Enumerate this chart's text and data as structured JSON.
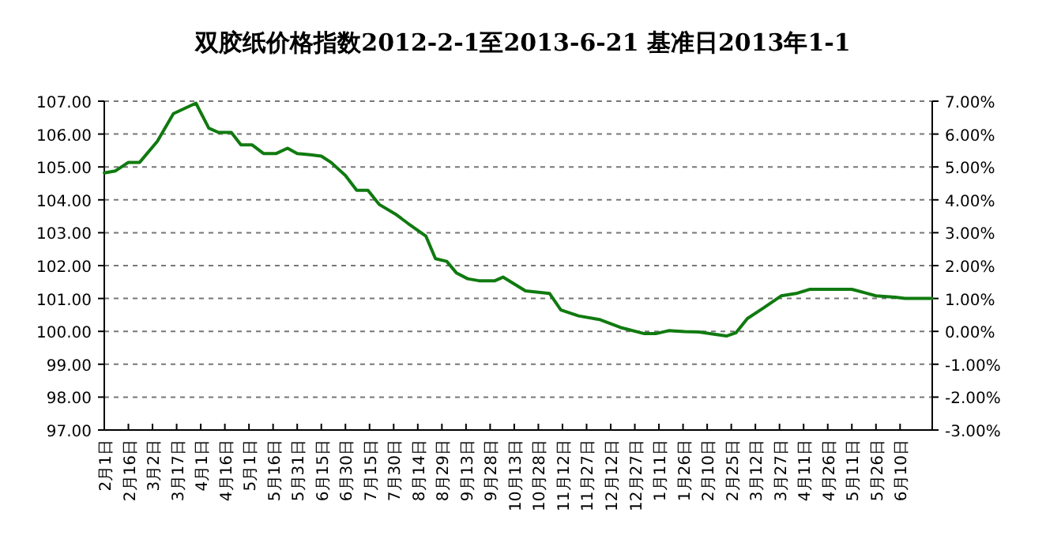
{
  "chart_data": {
    "type": "line",
    "title": "双胶纸价格指数2012-2-1至2013-6-21 基准日2013年1-1",
    "x": [
      "2012-02-01",
      "2012-02-08",
      "2012-02-16",
      "2012-02-23",
      "2012-03-05",
      "2012-03-15",
      "2012-03-29",
      "2012-04-06",
      "2012-04-12",
      "2012-04-20",
      "2012-04-26",
      "2012-05-03",
      "2012-05-10",
      "2012-05-18",
      "2012-05-25",
      "2012-05-31",
      "2012-06-08",
      "2012-06-15",
      "2012-06-21",
      "2012-06-30",
      "2012-07-07",
      "2012-07-14",
      "2012-07-21",
      "2012-07-31",
      "2012-08-08",
      "2012-08-19",
      "2012-08-25",
      "2012-09-01",
      "2012-09-07",
      "2012-09-14",
      "2012-09-21",
      "2012-10-01",
      "2012-10-06",
      "2012-10-14",
      "2012-10-20",
      "2012-11-04",
      "2012-11-11",
      "2012-11-22",
      "2012-12-05",
      "2012-12-18",
      "2013-01-02",
      "2013-01-09",
      "2013-01-17",
      "2013-01-27",
      "2013-02-05",
      "2013-02-15",
      "2013-02-22",
      "2013-02-28",
      "2013-03-07",
      "2013-03-17",
      "2013-03-28",
      "2013-04-07",
      "2013-04-15",
      "2013-05-11",
      "2013-05-20",
      "2013-05-26",
      "2013-06-07",
      "2013-06-13",
      "2013-06-30"
    ],
    "series": [
      {
        "color": "#107a10",
        "values": [
          104.82,
          104.88,
          105.14,
          105.14,
          105.78,
          106.62,
          106.94,
          106.18,
          106.05,
          106.05,
          105.67,
          105.67,
          105.41,
          105.41,
          105.57,
          105.41,
          105.37,
          105.33,
          105.14,
          104.74,
          104.29,
          104.29,
          103.86,
          103.57,
          103.28,
          102.9,
          102.21,
          102.13,
          101.78,
          101.6,
          101.54,
          101.54,
          101.65,
          101.41,
          101.23,
          101.15,
          100.65,
          100.47,
          100.36,
          100.12,
          99.93,
          99.93,
          100.02,
          99.99,
          99.98,
          99.91,
          99.86,
          99.96,
          100.39,
          100.71,
          101.08,
          101.16,
          101.28,
          101.28,
          101.16,
          101.08,
          101.04,
          101.0,
          101.0
        ]
      }
    ],
    "xlim": [
      "2012-02-01",
      "2013-06-30"
    ],
    "xticks": [
      {
        "value": "2012-02-01",
        "label": "2月1日"
      },
      {
        "value": "2012-02-16",
        "label": "2月16日"
      },
      {
        "value": "2012-03-02",
        "label": "3月2日"
      },
      {
        "value": "2012-03-17",
        "label": "3月17日"
      },
      {
        "value": "2012-04-01",
        "label": "4月1日"
      },
      {
        "value": "2012-04-16",
        "label": "4月16日"
      },
      {
        "value": "2012-05-01",
        "label": "5月1日"
      },
      {
        "value": "2012-05-16",
        "label": "5月16日"
      },
      {
        "value": "2012-05-31",
        "label": "5月31日"
      },
      {
        "value": "2012-06-15",
        "label": "6月15日"
      },
      {
        "value": "2012-06-30",
        "label": "6月30日"
      },
      {
        "value": "2012-07-15",
        "label": "7月15日"
      },
      {
        "value": "2012-07-30",
        "label": "7月30日"
      },
      {
        "value": "2012-08-14",
        "label": "8月14日"
      },
      {
        "value": "2012-08-29",
        "label": "8月29日"
      },
      {
        "value": "2012-09-13",
        "label": "9月13日"
      },
      {
        "value": "2012-09-28",
        "label": "9月28日"
      },
      {
        "value": "2012-10-13",
        "label": "10月13日"
      },
      {
        "value": "2012-10-28",
        "label": "10月28日"
      },
      {
        "value": "2012-11-12",
        "label": "11月12日"
      },
      {
        "value": "2012-11-27",
        "label": "11月27日"
      },
      {
        "value": "2012-12-12",
        "label": "12月12日"
      },
      {
        "value": "2012-12-27",
        "label": "12月27日"
      },
      {
        "value": "2013-01-11",
        "label": "1月11日"
      },
      {
        "value": "2013-01-26",
        "label": "1月26日"
      },
      {
        "value": "2013-02-10",
        "label": "2月10日"
      },
      {
        "value": "2013-02-25",
        "label": "2月25日"
      },
      {
        "value": "2013-03-12",
        "label": "3月12日"
      },
      {
        "value": "2013-03-27",
        "label": "3月27日"
      },
      {
        "value": "2013-04-11",
        "label": "4月11日"
      },
      {
        "value": "2013-04-26",
        "label": "4月26日"
      },
      {
        "value": "2013-05-11",
        "label": "5月11日"
      },
      {
        "value": "2013-05-26",
        "label": "5月26日"
      },
      {
        "value": "2013-06-10",
        "label": "6月10日"
      }
    ],
    "ylim": [
      97,
      107
    ],
    "yticks": [
      {
        "value": 97,
        "label": "97.00"
      },
      {
        "value": 98,
        "label": "98.00"
      },
      {
        "value": 99,
        "label": "99.00"
      },
      {
        "value": 100,
        "label": "100.00"
      },
      {
        "value": 101,
        "label": "101.00"
      },
      {
        "value": 102,
        "label": "102.00"
      },
      {
        "value": 103,
        "label": "103.00"
      },
      {
        "value": 104,
        "label": "104.00"
      },
      {
        "value": 105,
        "label": "105.00"
      },
      {
        "value": 106,
        "label": "106.00"
      },
      {
        "value": 107,
        "label": "107.00"
      }
    ],
    "y2lim": [
      -3,
      7
    ],
    "y2ticks": [
      {
        "value": -3,
        "label": "-3.00%"
      },
      {
        "value": -2,
        "label": "-2.00%"
      },
      {
        "value": -1,
        "label": "-1.00%"
      },
      {
        "value": 0,
        "label": "0.00%"
      },
      {
        "value": 1,
        "label": "1.00%"
      },
      {
        "value": 2,
        "label": "2.00%"
      },
      {
        "value": 3,
        "label": "3.00%"
      },
      {
        "value": 4,
        "label": "4.00%"
      },
      {
        "value": 5,
        "label": "5.00%"
      },
      {
        "value": 6,
        "label": "6.00%"
      },
      {
        "value": 7,
        "label": "7.00%"
      }
    ],
    "grid": "y",
    "marker": "none",
    "line_style": "solid"
  }
}
